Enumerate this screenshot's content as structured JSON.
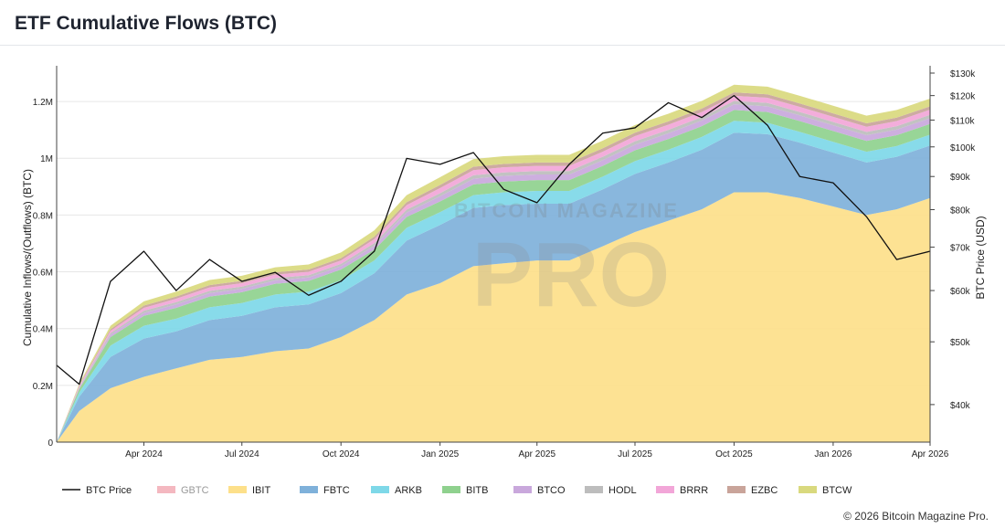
{
  "header": {
    "title": "ETF Cumulative Flows (BTC)"
  },
  "footer": {
    "copyright": "© 2026 Bitcoin Magazine Pro."
  },
  "watermark": {
    "top": "BITCOIN MAGAZINE",
    "main": "PRO"
  },
  "colors": {
    "GBTC": "#f4b8c0",
    "IBIT": "#fde08a",
    "FBTC": "#7fb1da",
    "ARKB": "#7ed8e8",
    "BITB": "#8fd18e",
    "BTCO": "#c9a8dc",
    "HODL": "#bdbdbd",
    "BRRR": "#f2a6d8",
    "EZBC": "#c9a49a",
    "BTCW": "#d9d97e",
    "price": "#111111"
  },
  "chart_data": {
    "type": "area",
    "title": "ETF Cumulative Flows (BTC)",
    "ylabel": "Cumulative Inflows/(Outflows) (BTC)",
    "y2label": "BTC Price (USD)",
    "ylim": [
      0,
      1300000
    ],
    "y2lim": [
      35000,
      130000
    ],
    "y2scale": "log",
    "grid": true,
    "legend_position": "bottom",
    "x_tick_labels": [
      "Apr 2024",
      "Jul 2024",
      "Oct 2024",
      "Jan 2025",
      "Apr 2025",
      "Jul 2025",
      "Oct 2025",
      "Jan 2026",
      "Apr 2026"
    ],
    "y_tick_labels": [
      "0",
      "0.2M",
      "0.4M",
      "0.6M",
      "0.8M",
      "1M",
      "1.2M"
    ],
    "y_tick_values": [
      0,
      200000,
      400000,
      600000,
      800000,
      1000000,
      1200000
    ],
    "y2_tick_labels": [
      "$40k",
      "$50k",
      "$60k",
      "$70k",
      "$80k",
      "$90k",
      "$100k",
      "$110k",
      "$120k",
      "$130k"
    ],
    "y2_tick_values": [
      40000,
      50000,
      60000,
      70000,
      80000,
      90000,
      100000,
      110000,
      120000,
      130000
    ],
    "legend": [
      "BTC Price",
      "GBTC",
      "IBIT",
      "FBTC",
      "ARKB",
      "BITB",
      "BTCO",
      "HODL",
      "BRRR",
      "EZBC",
      "BTCW"
    ],
    "x": [
      "2024-01-11",
      "2024-02-01",
      "2024-03-01",
      "2024-04-01",
      "2024-05-01",
      "2024-06-01",
      "2024-07-01",
      "2024-08-01",
      "2024-09-01",
      "2024-10-01",
      "2024-11-01",
      "2024-12-01",
      "2025-01-01",
      "2025-02-01",
      "2025-03-01",
      "2025-04-01",
      "2025-05-01",
      "2025-06-01",
      "2025-07-01",
      "2025-08-01",
      "2025-09-01",
      "2025-10-01",
      "2025-11-01",
      "2025-12-01",
      "2026-01-01",
      "2026-02-01",
      "2026-03-01",
      "2026-04-01"
    ],
    "series": [
      {
        "name": "IBIT",
        "values": [
          0,
          110000,
          190000,
          230000,
          260000,
          290000,
          300000,
          320000,
          330000,
          370000,
          430000,
          520000,
          560000,
          620000,
          630000,
          640000,
          640000,
          690000,
          740000,
          780000,
          820000,
          880000,
          880000,
          860000,
          830000,
          800000,
          820000,
          860000
        ]
      },
      {
        "name": "FBTC",
        "values": [
          0,
          50000,
          110000,
          135000,
          130000,
          140000,
          145000,
          155000,
          155000,
          155000,
          165000,
          190000,
          205000,
          205000,
          205000,
          200000,
          200000,
          200000,
          205000,
          205000,
          210000,
          210000,
          205000,
          195000,
          190000,
          185000,
          185000,
          185000
        ]
      },
      {
        "name": "ARKB",
        "values": [
          0,
          15000,
          40000,
          45000,
          45000,
          45000,
          45000,
          45000,
          45000,
          45000,
          45000,
          45000,
          45000,
          45000,
          45000,
          45000,
          45000,
          45000,
          45000,
          45000,
          45000,
          42000,
          40000,
          38000,
          38000,
          38000,
          38000,
          38000
        ]
      },
      {
        "name": "BITB",
        "values": [
          0,
          12000,
          30000,
          35000,
          38000,
          38000,
          38000,
          38000,
          38000,
          38000,
          38000,
          38000,
          38000,
          38000,
          38000,
          38000,
          38000,
          38000,
          38000,
          38000,
          38000,
          38000,
          38000,
          38000,
          38000,
          38000,
          38000,
          38000
        ]
      },
      {
        "name": "BTCO",
        "values": [
          0,
          4000,
          8000,
          10000,
          12000,
          12000,
          12000,
          12000,
          12000,
          12000,
          14000,
          16000,
          18000,
          20000,
          20000,
          20000,
          20000,
          20000,
          20000,
          20000,
          20000,
          20000,
          20000,
          20000,
          20000,
          20000,
          20000,
          20000
        ]
      },
      {
        "name": "HODL",
        "values": [
          0,
          3000,
          6000,
          8000,
          8000,
          8000,
          8000,
          8000,
          8000,
          8000,
          9000,
          10000,
          11000,
          12000,
          12000,
          12000,
          12000,
          12000,
          12000,
          12000,
          12000,
          12000,
          12000,
          12000,
          12000,
          12000,
          12000,
          12000
        ]
      },
      {
        "name": "BRRR",
        "values": [
          0,
          4000,
          8000,
          10000,
          12000,
          12000,
          12000,
          12000,
          12000,
          12000,
          14000,
          16000,
          18000,
          18000,
          18000,
          18000,
          18000,
          18000,
          18000,
          18000,
          18000,
          18000,
          18000,
          18000,
          18000,
          18000,
          18000,
          18000
        ]
      },
      {
        "name": "EZBC",
        "values": [
          0,
          3000,
          6000,
          8000,
          8000,
          8000,
          8000,
          8000,
          8000,
          8000,
          9000,
          10000,
          11000,
          12000,
          12000,
          12000,
          12000,
          12000,
          12000,
          12000,
          12000,
          12000,
          12000,
          12000,
          12000,
          12000,
          12000,
          12000
        ]
      },
      {
        "name": "BTCW",
        "values": [
          0,
          5000,
          12000,
          15000,
          17000,
          18000,
          18000,
          18000,
          18000,
          20000,
          22000,
          25000,
          27000,
          27000,
          27000,
          27000,
          27000,
          27000,
          27000,
          27000,
          27000,
          27000,
          27000,
          27000,
          27000,
          27000,
          27000,
          27000
        ]
      },
      {
        "name": "BTC Price",
        "axis": "right",
        "values": [
          46000,
          43000,
          62000,
          69000,
          60000,
          67000,
          62000,
          64000,
          59000,
          62000,
          69000,
          96000,
          94000,
          98000,
          86000,
          82000,
          94000,
          105000,
          107000,
          117000,
          111000,
          120000,
          108000,
          90000,
          88000,
          78000,
          67000,
          69000
        ]
      }
    ]
  }
}
